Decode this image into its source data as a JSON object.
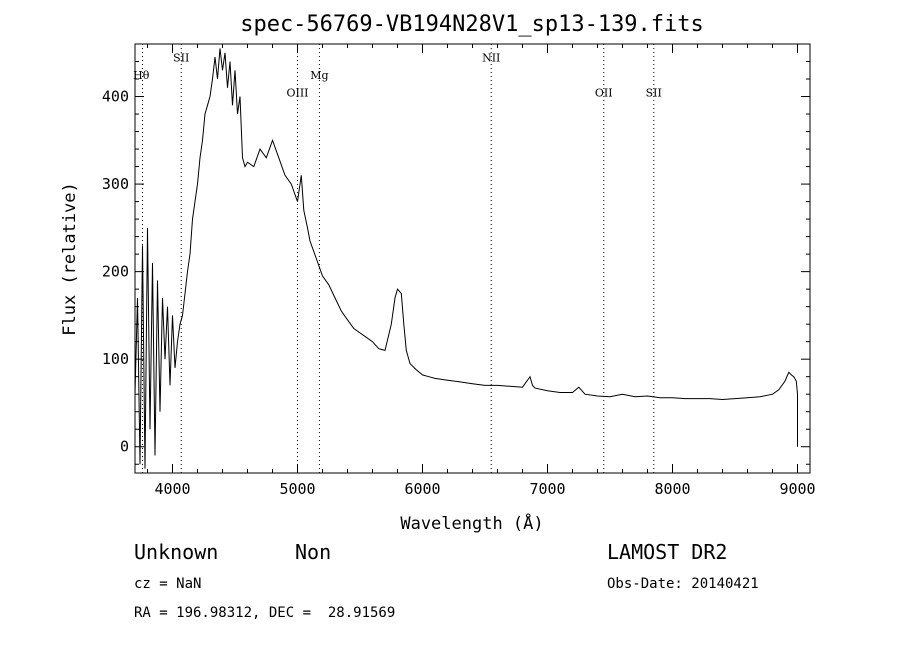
{
  "chart_data": {
    "type": "line",
    "title": "spec-56769-VB194N28V1_sp13-139.fits",
    "xlabel": "Wavelength (Å)",
    "ylabel": "Flux (relative)",
    "xlim": [
      3700,
      9100
    ],
    "ylim": [
      -30,
      460
    ],
    "xticks": [
      4000,
      5000,
      6000,
      7000,
      8000,
      9000
    ],
    "yticks": [
      0,
      100,
      200,
      300,
      400
    ],
    "grid": false,
    "series": [
      {
        "x": [
          3700,
          3720,
          3740,
          3760,
          3780,
          3800,
          3820,
          3840,
          3860,
          3880,
          3900,
          3920,
          3940,
          3960,
          3980,
          4000,
          4020,
          4040,
          4060,
          4080,
          4100,
          4120,
          4140,
          4160,
          4180,
          4200,
          4220,
          4240,
          4260,
          4280,
          4300,
          4320,
          4340,
          4360,
          4380,
          4400,
          4420,
          4440,
          4460,
          4480,
          4500,
          4520,
          4540,
          4560,
          4580,
          4600,
          4650,
          4700,
          4750,
          4800,
          4850,
          4900,
          4950,
          5000,
          5030,
          5050,
          5080,
          5100,
          5150,
          5200,
          5250,
          5300,
          5350,
          5400,
          5450,
          5500,
          5550,
          5600,
          5650,
          5700,
          5750,
          5780,
          5800,
          5830,
          5850,
          5870,
          5900,
          5950,
          6000,
          6050,
          6100,
          6200,
          6300,
          6400,
          6500,
          6600,
          6700,
          6800,
          6860,
          6880,
          6900,
          7000,
          7100,
          7200,
          7250,
          7300,
          7400,
          7500,
          7600,
          7700,
          7800,
          7900,
          8000,
          8100,
          8200,
          8300,
          8400,
          8500,
          8600,
          8700,
          8800,
          8850,
          8900,
          8930,
          8950,
          8970,
          8990,
          9000,
          9000
        ],
        "y": [
          60,
          170,
          -20,
          230,
          -25,
          250,
          20,
          210,
          -10,
          190,
          40,
          170,
          100,
          160,
          70,
          150,
          90,
          120,
          140,
          150,
          175,
          200,
          220,
          260,
          280,
          300,
          330,
          350,
          380,
          390,
          400,
          420,
          445,
          420,
          455,
          430,
          450,
          410,
          440,
          390,
          430,
          380,
          400,
          330,
          320,
          325,
          320,
          340,
          330,
          350,
          330,
          310,
          300,
          280,
          310,
          270,
          250,
          235,
          215,
          195,
          185,
          170,
          155,
          145,
          135,
          130,
          125,
          120,
          112,
          110,
          140,
          170,
          180,
          175,
          140,
          110,
          95,
          88,
          82,
          80,
          78,
          76,
          74,
          72,
          70,
          70,
          69,
          68,
          80,
          70,
          67,
          64,
          62,
          62,
          68,
          60,
          58,
          57,
          60,
          57,
          58,
          56,
          56,
          55,
          55,
          55,
          54,
          55,
          56,
          57,
          60,
          65,
          75,
          85,
          82,
          80,
          75,
          60,
          0
        ]
      }
    ],
    "annotations": [
      {
        "label": "Hθ",
        "x": 3750,
        "y": 420
      },
      {
        "label": "SII",
        "x": 4070,
        "y": 440
      },
      {
        "label": "OIII",
        "x": 5000,
        "y": 400
      },
      {
        "label": "Mg",
        "x": 5175,
        "y": 420
      },
      {
        "label": "NII",
        "x": 6550,
        "y": 440
      },
      {
        "label": "OII",
        "x": 7450,
        "y": 400
      },
      {
        "label": "SII",
        "x": 7850,
        "y": 400
      }
    ],
    "dotted_lines": [
      3760,
      4070,
      5000,
      5175,
      6550,
      7450,
      7850
    ]
  },
  "footer": {
    "left_line1_a": "Unknown",
    "left_line1_b": "Non",
    "left_line2": "cz = NaN",
    "left_line3": "RA = 196.98312, DEC =  28.91569",
    "right_line1": "LAMOST DR2",
    "right_line2": "Obs-Date: 20140421"
  }
}
